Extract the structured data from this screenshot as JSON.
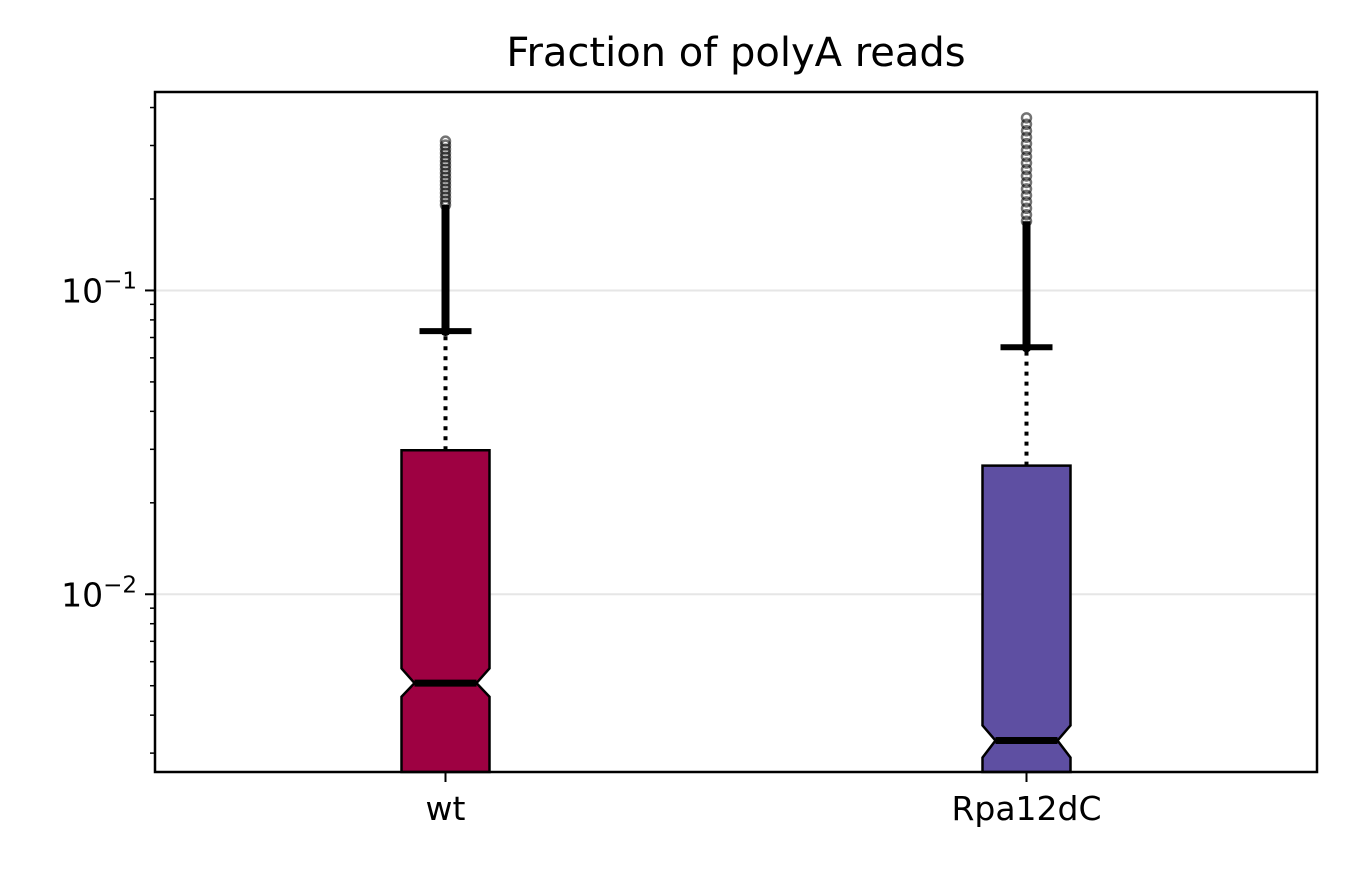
{
  "chart_data": {
    "type": "boxplot",
    "title": "Fraction of polyA reads",
    "xlabel": "",
    "ylabel": "",
    "yscale": "log",
    "ylim": [
      0.0026,
      0.45
    ],
    "y_ticks": [
      {
        "value": 0.1,
        "base": "10",
        "exp": "−1"
      },
      {
        "value": 0.01,
        "base": "10",
        "exp": "−2"
      }
    ],
    "grid": "horizontal",
    "notched": true,
    "categories": [
      "wt",
      "Rpa12dC"
    ],
    "boxes": [
      {
        "label": "wt",
        "color": "#9E0142",
        "median": 0.0051,
        "q1": 0.0025,
        "q3": 0.0298,
        "notch_low": 0.0046,
        "notch_high": 0.0057,
        "whisker_low": 0.0025,
        "whisker_high": 0.0735,
        "outliers_from": 0.0735,
        "outliers_to": 0.31
      },
      {
        "label": "Rpa12dC",
        "color": "#5E4FA2",
        "median": 0.0033,
        "q1": 0.0025,
        "q3": 0.0265,
        "notch_low": 0.0029,
        "notch_high": 0.0037,
        "whisker_low": 0.0025,
        "whisker_high": 0.065,
        "outliers_from": 0.065,
        "outliers_to": 0.37
      }
    ]
  }
}
